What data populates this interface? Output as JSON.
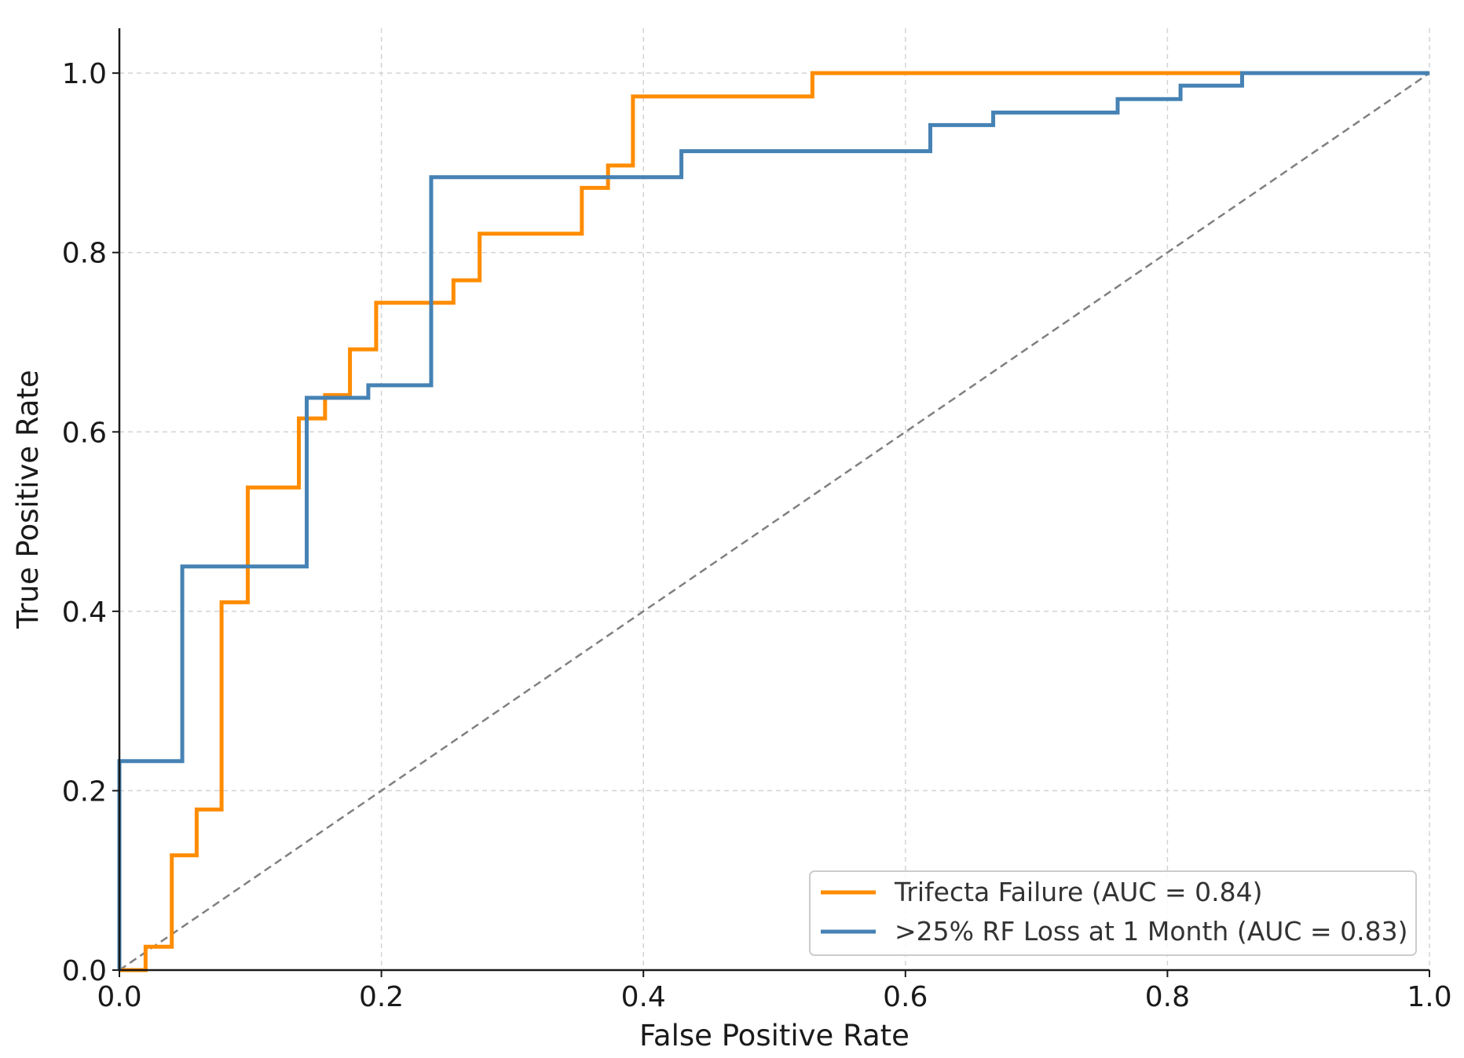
{
  "chart_data": {
    "type": "line",
    "title": "",
    "xlabel": "False Positive Rate",
    "ylabel": "True Positive Rate",
    "xlim": [
      0,
      1
    ],
    "ylim": [
      0,
      1.05
    ],
    "xticks": [
      0.0,
      0.2,
      0.4,
      0.6,
      0.8,
      1.0
    ],
    "yticks": [
      0.0,
      0.2,
      0.4,
      0.6,
      0.8,
      1.0
    ],
    "xtick_labels": [
      "0.0",
      "0.2",
      "0.4",
      "0.6",
      "0.8",
      "1.0"
    ],
    "ytick_labels": [
      "0.0",
      "0.2",
      "0.4",
      "0.6",
      "0.8",
      "1.0"
    ],
    "grid": true,
    "legend_position": "bottom-right",
    "series": [
      {
        "name": "Trifecta Failure (AUC = 0.84)",
        "color": "#ff8c00",
        "step": true,
        "x": [
          0.0,
          0.0,
          0.02,
          0.02,
          0.04,
          0.04,
          0.059,
          0.059,
          0.078,
          0.078,
          0.098,
          0.098,
          0.137,
          0.137,
          0.157,
          0.157,
          0.176,
          0.176,
          0.196,
          0.196,
          0.255,
          0.255,
          0.275,
          0.275,
          0.353,
          0.353,
          0.373,
          0.373,
          0.392,
          0.392,
          0.529,
          0.529,
          0.857
        ],
        "y": [
          0.0,
          0.0,
          0.0,
          0.026,
          0.026,
          0.128,
          0.128,
          0.179,
          0.179,
          0.41,
          0.41,
          0.538,
          0.538,
          0.615,
          0.615,
          0.641,
          0.641,
          0.692,
          0.692,
          0.744,
          0.744,
          0.769,
          0.769,
          0.821,
          0.821,
          0.872,
          0.872,
          0.897,
          0.897,
          0.974,
          0.974,
          1.0,
          1.0
        ]
      },
      {
        "name": ">25% RF Loss at 1 Month (AUC = 0.83)",
        "color": "#4682b4",
        "step": true,
        "x": [
          0.0,
          0.0,
          0.048,
          0.048,
          0.143,
          0.143,
          0.19,
          0.19,
          0.238,
          0.238,
          0.429,
          0.429,
          0.619,
          0.619,
          0.667,
          0.667,
          0.762,
          0.762,
          0.81,
          0.81,
          0.857,
          0.857,
          1.0
        ],
        "y": [
          0.0,
          0.233,
          0.233,
          0.45,
          0.45,
          0.638,
          0.638,
          0.652,
          0.652,
          0.884,
          0.884,
          0.913,
          0.913,
          0.942,
          0.942,
          0.956,
          0.956,
          0.971,
          0.971,
          0.986,
          0.986,
          1.0,
          1.0
        ]
      }
    ],
    "reference_line": {
      "name": "chance diagonal",
      "color": "#808080",
      "style": "dashed",
      "x": [
        0,
        1
      ],
      "y": [
        0,
        1
      ]
    }
  },
  "colors": {
    "axis": "#1a1a1a",
    "grid": "#d3d3d3",
    "legend_border": "#cccccc"
  }
}
